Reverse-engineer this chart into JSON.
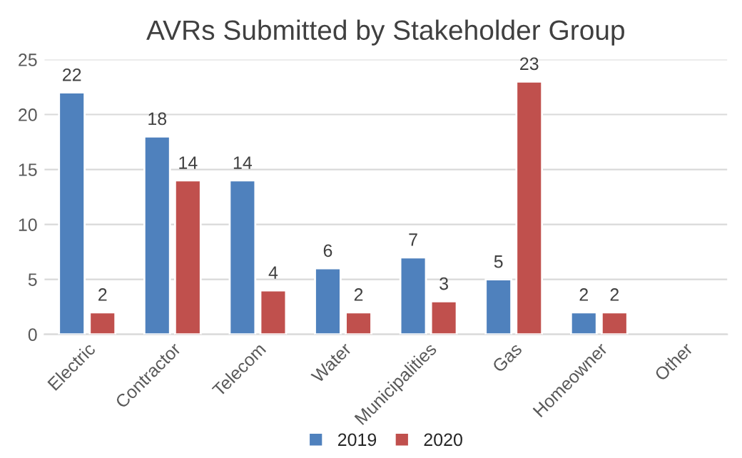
{
  "chart_data": {
    "type": "bar",
    "title": "AVRs Submitted by Stakeholder Group",
    "categories": [
      "Electric",
      "Contractor",
      "Telecom",
      "Water",
      "Municipalities",
      "Gas",
      "Homeowner",
      "Other"
    ],
    "series": [
      {
        "name": "2019",
        "color": "#4f81bd",
        "values": [
          22,
          18,
          14,
          6,
          7,
          5,
          2,
          null
        ]
      },
      {
        "name": "2020",
        "color": "#c0504d",
        "values": [
          2,
          14,
          4,
          2,
          3,
          23,
          2,
          null
        ]
      }
    ],
    "ylim": [
      0,
      25
    ],
    "yticks": [
      0,
      5,
      10,
      15,
      20,
      25
    ],
    "grid": "y",
    "legend": "bottom",
    "data_labels": true
  }
}
